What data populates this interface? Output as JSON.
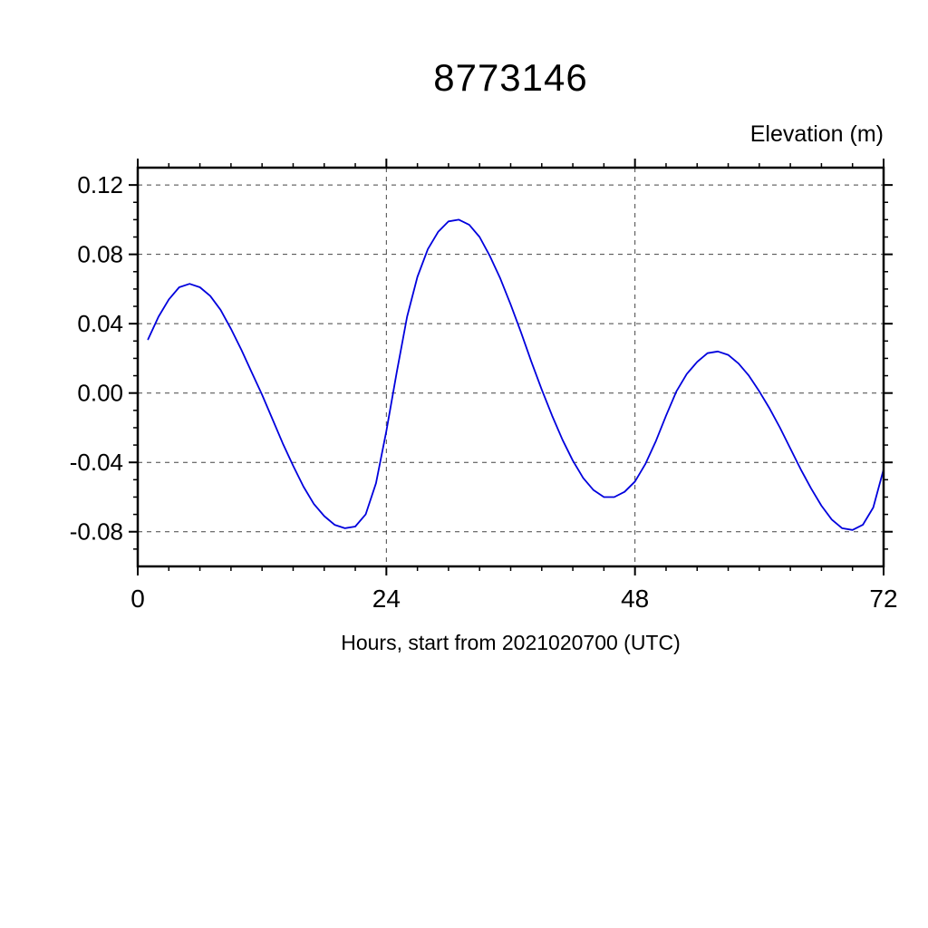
{
  "page": {
    "background": "#ffffff"
  },
  "chart_data": {
    "type": "line",
    "title": "8773146",
    "top_right_label": "Elevation (m)",
    "xlabel": "Hours, start from 2021020700 (UTC)",
    "ylabel": "Elevation (m)",
    "xlim": [
      0,
      72
    ],
    "ylim": [
      -0.1,
      0.13
    ],
    "xticks": [
      0,
      24,
      48,
      72
    ],
    "xtick_labels": [
      "0",
      "24",
      "48",
      "72"
    ],
    "yticks": [
      -0.08,
      -0.04,
      0.0,
      0.04,
      0.08,
      0.12
    ],
    "ytick_labels": [
      "-0.08",
      "-0.04",
      "0.00",
      "0.04",
      "0.08",
      "0.12"
    ],
    "x_minor_step": 3,
    "y_minor_step": 0.01,
    "grid": true,
    "grid_x": [
      24,
      48
    ],
    "grid_y": [
      -0.08,
      -0.04,
      0.0,
      0.04,
      0.08,
      0.12
    ],
    "line_color": "#0000dd",
    "axis_color": "#000000",
    "grid_color": "#444444",
    "series": [
      {
        "name": "elevation",
        "x": [
          1,
          2,
          3,
          4,
          5,
          6,
          7,
          8,
          9,
          10,
          11,
          12,
          13,
          14,
          15,
          16,
          17,
          18,
          19,
          20,
          21,
          22,
          23,
          24,
          25,
          26,
          27,
          28,
          29,
          30,
          31,
          32,
          33,
          34,
          35,
          36,
          37,
          38,
          39,
          40,
          41,
          42,
          43,
          44,
          45,
          46,
          47,
          48,
          49,
          50,
          51,
          52,
          53,
          54,
          55,
          56,
          57,
          58,
          59,
          60,
          61,
          62,
          63,
          64,
          65,
          66,
          67,
          68,
          69,
          70,
          71,
          72
        ],
        "y": [
          0.031,
          0.044,
          0.054,
          0.061,
          0.063,
          0.061,
          0.056,
          0.048,
          0.037,
          0.025,
          0.012,
          -0.001,
          -0.015,
          -0.029,
          -0.042,
          -0.054,
          -0.064,
          -0.071,
          -0.076,
          -0.078,
          -0.077,
          -0.07,
          -0.052,
          -0.022,
          0.012,
          0.044,
          0.067,
          0.083,
          0.093,
          0.099,
          0.1,
          0.097,
          0.09,
          0.079,
          0.066,
          0.051,
          0.035,
          0.018,
          0.002,
          -0.013,
          -0.027,
          -0.039,
          -0.049,
          -0.056,
          -0.06,
          -0.06,
          -0.057,
          -0.051,
          -0.041,
          -0.028,
          -0.013,
          0.001,
          0.011,
          0.018,
          0.023,
          0.024,
          0.022,
          0.017,
          0.01,
          0.001,
          -0.009,
          -0.02,
          -0.032,
          -0.044,
          -0.055,
          -0.065,
          -0.073,
          -0.078,
          -0.079,
          -0.076,
          -0.066,
          -0.044
        ]
      }
    ]
  }
}
